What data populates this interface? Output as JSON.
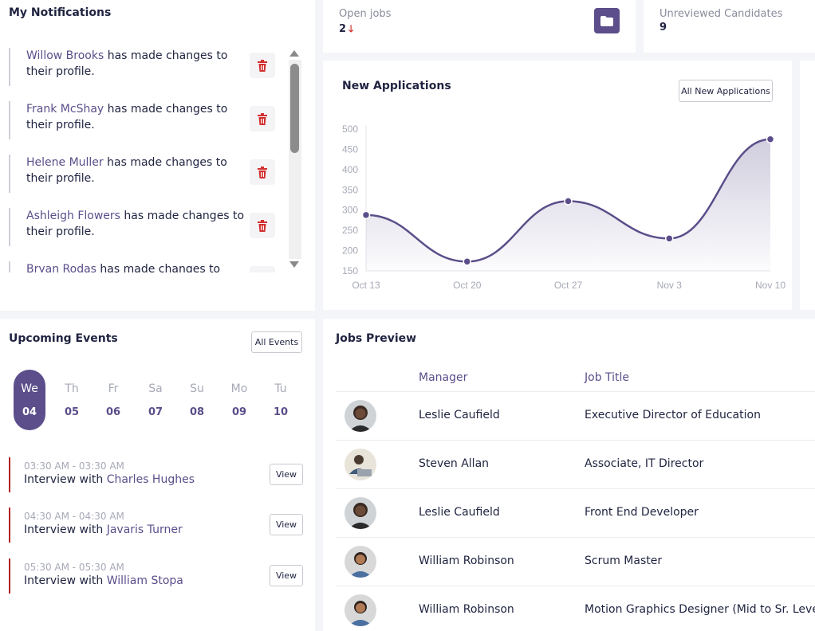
{
  "notifications": {
    "title": "My Notifications",
    "items": [
      {
        "name": "Willow Brooks",
        "text": " has made changes to their profile."
      },
      {
        "name": "Frank McShay",
        "text": " has made changes to their profile."
      },
      {
        "name": "Helene Muller",
        "text": " has made changes to their profile."
      },
      {
        "name": "Ashleigh Flowers",
        "text": " has made changes to their profile."
      },
      {
        "name": "Bryan Rodas",
        "text": " has made changes to their profile."
      }
    ]
  },
  "kpis": {
    "open_jobs_label": "Open jobs",
    "open_jobs_value": "2",
    "open_jobs_arrow": "🡓",
    "unreviewed_label": "Unreviewed Candidates",
    "unreviewed_value": "9"
  },
  "new_applications": {
    "title": "New Applications",
    "button_label": "All New Applications"
  },
  "chart_data": {
    "type": "line",
    "x": [
      "Oct 13",
      "Oct 20",
      "Oct 27",
      "Nov 3",
      "Nov 10"
    ],
    "y_ticks": [
      150,
      200,
      250,
      300,
      350,
      400,
      450,
      500
    ],
    "values": [
      288,
      173,
      322,
      230,
      475
    ],
    "ylim": [
      150,
      500
    ],
    "smooth": true,
    "area_fill": true,
    "line_color": "#5b4e8a",
    "grid": false
  },
  "events": {
    "title": "Upcoming Events",
    "button_label": "All Events",
    "days": [
      {
        "name": "We",
        "num": "04",
        "selected": true
      },
      {
        "name": "Th",
        "num": "05"
      },
      {
        "name": "Fr",
        "num": "06"
      },
      {
        "name": "Sa",
        "num": "07"
      },
      {
        "name": "Su",
        "num": "08"
      },
      {
        "name": "Mo",
        "num": "09"
      },
      {
        "name": "Tu",
        "num": "10"
      }
    ],
    "items": [
      {
        "time": "03:30 AM - 03:30 AM",
        "prefix": "Interview with ",
        "name": "Charles Hughes",
        "button": "View"
      },
      {
        "time": "04:30 AM - 04:30 AM",
        "prefix": "Interview with ",
        "name": "Javaris Turner",
        "button": "View"
      },
      {
        "time": "05:30 AM - 05:30 AM",
        "prefix": "Interview with ",
        "name": "William Stopa",
        "button": "View"
      }
    ]
  },
  "jobs": {
    "title": "Jobs Preview",
    "columns": [
      "Manager",
      "Job Title"
    ],
    "rows": [
      {
        "manager": "Leslie Caufield",
        "title": "Executive Director of Education",
        "avatar": "avatar-woman"
      },
      {
        "manager": "Steven Allan",
        "title": "Associate, IT Director",
        "avatar": "avatar-man-laptop"
      },
      {
        "manager": "Leslie Caufield",
        "title": "Front End Developer",
        "avatar": "avatar-woman"
      },
      {
        "manager": "William Robinson",
        "title": "Scrum Master",
        "avatar": "avatar-man"
      },
      {
        "manager": "William Robinson",
        "title": "Motion Graphics Designer (Mid to Sr. Leve",
        "avatar": "avatar-man"
      }
    ]
  },
  "colors": {
    "accent": "#5b4e8a",
    "danger": "#d32f2f",
    "event_bar": "#b22222"
  }
}
